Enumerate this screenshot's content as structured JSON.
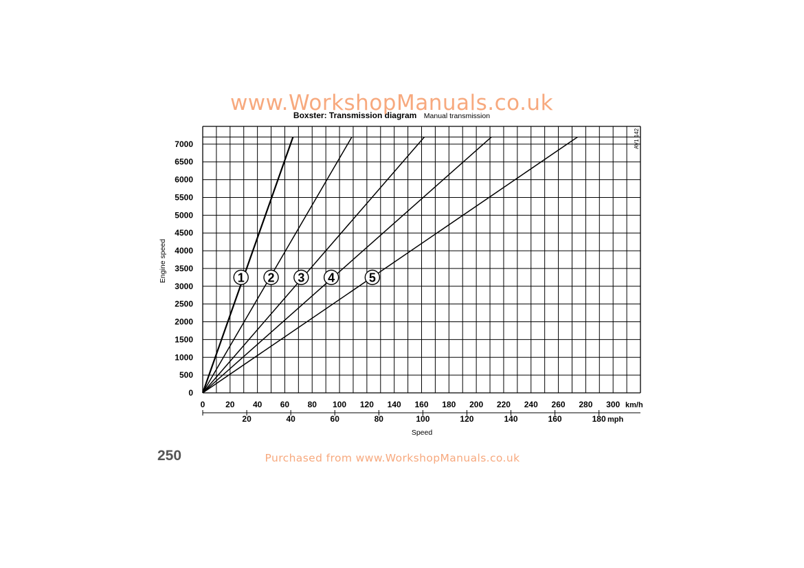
{
  "page": {
    "watermark_top": "www.WorkshopManuals.co.uk",
    "watermark_bottom": "Purchased from www.WorkshopManuals.co.uk",
    "page_number": "250",
    "figure_code": "AV1 142",
    "watermark_color": "#f7a97e"
  },
  "chart_data": {
    "type": "line",
    "title": "Boxster: Transmission diagram",
    "subtitle": "Manual transmission",
    "ylabel": "Engine speed",
    "xlabel": "Speed",
    "x_unit": "km/h",
    "x2_unit": "mph",
    "xlim": [
      0,
      320
    ],
    "ylim": [
      0,
      7500
    ],
    "x_ticks": [
      0,
      20,
      40,
      60,
      80,
      100,
      120,
      140,
      160,
      180,
      200,
      220,
      240,
      260,
      280,
      300
    ],
    "x_tick_labels": [
      "0",
      "20",
      "40",
      "60",
      "80",
      "100",
      "120",
      "140",
      "160",
      "180",
      "200",
      "220",
      "240",
      "260",
      "280",
      "300"
    ],
    "x2_ticks_mph": [
      20,
      40,
      60,
      80,
      100,
      120,
      140,
      160,
      180
    ],
    "x2_tick_labels": [
      "20",
      "40",
      "60",
      "80",
      "100",
      "120",
      "140",
      "160",
      "180"
    ],
    "y_ticks": [
      0,
      500,
      1000,
      1500,
      2000,
      2500,
      3000,
      3500,
      4000,
      4500,
      5000,
      5500,
      6000,
      6500,
      7000
    ],
    "y_tick_labels": [
      "0",
      "500",
      "1000",
      "1500",
      "2000",
      "2500",
      "3000",
      "3500",
      "4000",
      "4500",
      "5000",
      "5500",
      "6000",
      "6500",
      "7000"
    ],
    "redline_rpm": 7200,
    "grid": true,
    "series": [
      {
        "label": "1",
        "x": [
          0,
          66
        ],
        "y": [
          0,
          7200
        ],
        "label_at": [
          28,
          3250
        ]
      },
      {
        "label": "2",
        "x": [
          0,
          109
        ],
        "y": [
          0,
          7200
        ],
        "label_at": [
          50,
          3250
        ]
      },
      {
        "label": "3",
        "x": [
          0,
          162
        ],
        "y": [
          0,
          7200
        ],
        "label_at": [
          72,
          3250
        ]
      },
      {
        "label": "4",
        "x": [
          0,
          211
        ],
        "y": [
          0,
          7200
        ],
        "label_at": [
          94,
          3250
        ]
      },
      {
        "label": "5",
        "x": [
          0,
          274
        ],
        "y": [
          0,
          7200
        ],
        "label_at": [
          124,
          3250
        ]
      }
    ]
  }
}
